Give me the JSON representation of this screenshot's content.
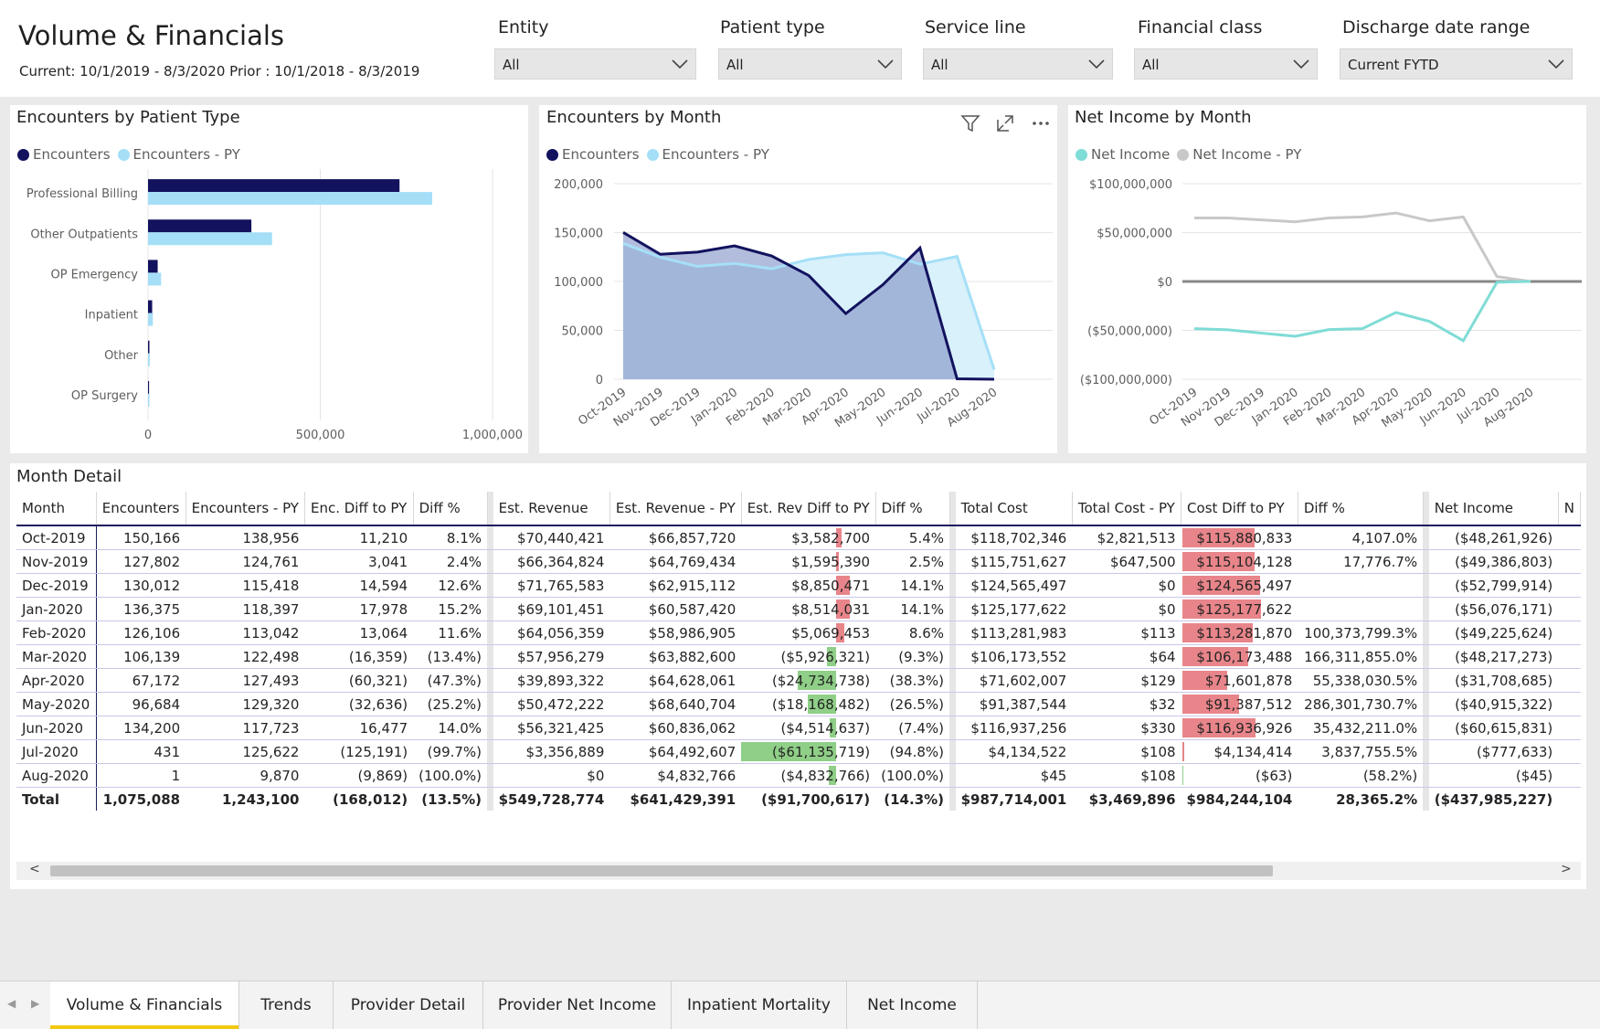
{
  "header": {
    "title": "Volume & Financials",
    "subtitle": "Current: 10/1/2019 - 8/3/2020 Prior : 10/1/2018 - 8/3/2019"
  },
  "slicers": [
    {
      "label": "Entity",
      "value": "All"
    },
    {
      "label": "Patient type",
      "value": "All"
    },
    {
      "label": "Service line",
      "value": "All"
    },
    {
      "label": "Financial class",
      "value": "All"
    },
    {
      "label": "Discharge date range",
      "value": "Current FYTD"
    }
  ],
  "visuals": {
    "patient_type": {
      "title": "Encounters by Patient Type",
      "legend": [
        "Encounters",
        "Encounters - PY"
      ]
    },
    "month": {
      "title": "Encounters by Month",
      "legend": [
        "Encounters",
        "Encounters - PY"
      ]
    },
    "net_income": {
      "title": "Net Income by Month",
      "legend": [
        "Net Income",
        "Net Income - PY"
      ]
    }
  },
  "colors": {
    "current": "#12125e",
    "prior": "#a5dff7",
    "net_income": "#7fdcd6",
    "net_income_py": "#c8c8c8",
    "neg_bar": "#e8858a",
    "pos_bar": "#8fcf87"
  },
  "chart_data": [
    {
      "type": "bar",
      "orientation": "horizontal",
      "title": "Encounters by Patient Type",
      "categories": [
        "Professional Billing",
        "Other Outpatients",
        "OP Emergency",
        "Inpatient",
        "Other",
        "OP Surgery"
      ],
      "series": [
        {
          "name": "Encounters",
          "values": [
            730000,
            300000,
            28000,
            12000,
            4000,
            3000
          ]
        },
        {
          "name": "Encounters - PY",
          "values": [
            825000,
            360000,
            38000,
            14000,
            5000,
            4000
          ]
        }
      ],
      "xlim": [
        0,
        1000000
      ],
      "x_ticks": [
        "0",
        "500,000",
        "1,000,000"
      ],
      "legend": "top-left"
    },
    {
      "type": "area",
      "title": "Encounters by Month",
      "categories": [
        "Oct-2019",
        "Nov-2019",
        "Dec-2019",
        "Jan-2020",
        "Feb-2020",
        "Mar-2020",
        "Apr-2020",
        "May-2020",
        "Jun-2020",
        "Jul-2020",
        "Aug-2020"
      ],
      "series": [
        {
          "name": "Encounters",
          "values": [
            150166,
            127802,
            130012,
            136375,
            126106,
            106139,
            67172,
            96684,
            134200,
            431,
            1
          ]
        },
        {
          "name": "Encounters - PY",
          "values": [
            138956,
            124761,
            115418,
            118397,
            113042,
            122498,
            127493,
            129320,
            117723,
            125622,
            9870
          ]
        }
      ],
      "ylim": [
        0,
        200000
      ],
      "y_ticks": [
        "0",
        "50,000",
        "100,000",
        "150,000",
        "200,000"
      ],
      "legend": "top-left",
      "grid": true
    },
    {
      "type": "line",
      "title": "Net Income by Month",
      "categories": [
        "Oct-2019",
        "Nov-2019",
        "Dec-2019",
        "Jan-2020",
        "Feb-2020",
        "Mar-2020",
        "Apr-2020",
        "May-2020",
        "Jun-2020",
        "Jul-2020",
        "Aug-2020"
      ],
      "series": [
        {
          "name": "Net Income",
          "values": [
            -48261926,
            -49386803,
            -52799914,
            -56076171,
            -49225624,
            -48217273,
            -31708685,
            -40915322,
            -60615831,
            -777633,
            -45
          ]
        },
        {
          "name": "Net Income - PY",
          "values": [
            65000000,
            65000000,
            63000000,
            61000000,
            65000000,
            66000000,
            70000000,
            62000000,
            66000000,
            5000000,
            0
          ]
        }
      ],
      "ylim": [
        -100000000,
        100000000
      ],
      "y_ticks": [
        "($100,000,000)",
        "($50,000,000)",
        "$0",
        "$50,000,000",
        "$100,000,000"
      ],
      "legend": "top-left",
      "grid": true
    }
  ],
  "table": {
    "title": "Month Detail",
    "columns": [
      "Month",
      "Encounters",
      "Encounters - PY",
      "Enc. Diff to PY",
      "Diff %",
      "Est. Revenue",
      "Est. Revenue - PY",
      "Est. Rev Diff to PY",
      "Diff %",
      "Total Cost",
      "Total Cost - PY",
      "Cost Diff to PY",
      "Diff %",
      "Net Income",
      "N"
    ],
    "rows": [
      {
        "month": "Oct-2019",
        "enc": "150,166",
        "enc_py": "138,956",
        "enc_diff": "11,210",
        "enc_pct": "8.1%",
        "rev": "$70,440,421",
        "rev_py": "$66,857,720",
        "rev_diff": "$3,582,700",
        "rev_diff_v": 3582700,
        "rev_pct": "5.4%",
        "cost": "$118,702,346",
        "cost_py": "$2,821,513",
        "cost_diff": "$115,880,833",
        "cost_diff_v": 115880833,
        "cost_pct": "4,107.0%",
        "ni": "($48,261,926)"
      },
      {
        "month": "Nov-2019",
        "enc": "127,802",
        "enc_py": "124,761",
        "enc_diff": "3,041",
        "enc_pct": "2.4%",
        "rev": "$66,364,824",
        "rev_py": "$64,769,434",
        "rev_diff": "$1,595,390",
        "rev_diff_v": 1595390,
        "rev_pct": "2.5%",
        "cost": "$115,751,627",
        "cost_py": "$647,500",
        "cost_diff": "$115,104,128",
        "cost_diff_v": 115104128,
        "cost_pct": "17,776.7%",
        "ni": "($49,386,803)"
      },
      {
        "month": "Dec-2019",
        "enc": "130,012",
        "enc_py": "115,418",
        "enc_diff": "14,594",
        "enc_pct": "12.6%",
        "rev": "$71,765,583",
        "rev_py": "$62,915,112",
        "rev_diff": "$8,850,471",
        "rev_diff_v": 8850471,
        "rev_pct": "14.1%",
        "cost": "$124,565,497",
        "cost_py": "$0",
        "cost_diff": "$124,565,497",
        "cost_diff_v": 124565497,
        "cost_pct": "",
        "ni": "($52,799,914)"
      },
      {
        "month": "Jan-2020",
        "enc": "136,375",
        "enc_py": "118,397",
        "enc_diff": "17,978",
        "enc_pct": "15.2%",
        "rev": "$69,101,451",
        "rev_py": "$60,587,420",
        "rev_diff": "$8,514,031",
        "rev_diff_v": 8514031,
        "rev_pct": "14.1%",
        "cost": "$125,177,622",
        "cost_py": "$0",
        "cost_diff": "$125,177,622",
        "cost_diff_v": 125177622,
        "cost_pct": "",
        "ni": "($56,076,171)"
      },
      {
        "month": "Feb-2020",
        "enc": "126,106",
        "enc_py": "113,042",
        "enc_diff": "13,064",
        "enc_pct": "11.6%",
        "rev": "$64,056,359",
        "rev_py": "$58,986,905",
        "rev_diff": "$5,069,453",
        "rev_diff_v": 5069453,
        "rev_pct": "8.6%",
        "cost": "$113,281,983",
        "cost_py": "$113",
        "cost_diff": "$113,281,870",
        "cost_diff_v": 113281870,
        "cost_pct": "100,373,799.3%",
        "ni": "($49,225,624)"
      },
      {
        "month": "Mar-2020",
        "enc": "106,139",
        "enc_py": "122,498",
        "enc_diff": "(16,359)",
        "enc_pct": "(13.4%)",
        "rev": "$57,956,279",
        "rev_py": "$63,882,600",
        "rev_diff": "($5,926,321)",
        "rev_diff_v": -5926321,
        "rev_pct": "(9.3%)",
        "cost": "$106,173,552",
        "cost_py": "$64",
        "cost_diff": "$106,173,488",
        "cost_diff_v": 106173488,
        "cost_pct": "166,311,855.0%",
        "ni": "($48,217,273)"
      },
      {
        "month": "Apr-2020",
        "enc": "67,172",
        "enc_py": "127,493",
        "enc_diff": "(60,321)",
        "enc_pct": "(47.3%)",
        "rev": "$39,893,322",
        "rev_py": "$64,628,061",
        "rev_diff": "($24,734,738)",
        "rev_diff_v": -24734738,
        "rev_pct": "(38.3%)",
        "cost": "$71,602,007",
        "cost_py": "$129",
        "cost_diff": "$71,601,878",
        "cost_diff_v": 71601878,
        "cost_pct": "55,338,030.5%",
        "ni": "($31,708,685)"
      },
      {
        "month": "May-2020",
        "enc": "96,684",
        "enc_py": "129,320",
        "enc_diff": "(32,636)",
        "enc_pct": "(25.2%)",
        "rev": "$50,472,222",
        "rev_py": "$68,640,704",
        "rev_diff": "($18,168,482)",
        "rev_diff_v": -18168482,
        "rev_pct": "(26.5%)",
        "cost": "$91,387,544",
        "cost_py": "$32",
        "cost_diff": "$91,387,512",
        "cost_diff_v": 91387512,
        "cost_pct": "286,301,730.7%",
        "ni": "($40,915,322)"
      },
      {
        "month": "Jun-2020",
        "enc": "134,200",
        "enc_py": "117,723",
        "enc_diff": "16,477",
        "enc_pct": "14.0%",
        "rev": "$56,321,425",
        "rev_py": "$60,836,062",
        "rev_diff": "($4,514,637)",
        "rev_diff_v": -4514637,
        "rev_pct": "(7.4%)",
        "cost": "$116,937,256",
        "cost_py": "$330",
        "cost_diff": "$116,936,926",
        "cost_diff_v": 116936926,
        "cost_pct": "35,432,211.0%",
        "ni": "($60,615,831)"
      },
      {
        "month": "Jul-2020",
        "enc": "431",
        "enc_py": "125,622",
        "enc_diff": "(125,191)",
        "enc_pct": "(99.7%)",
        "rev": "$3,356,889",
        "rev_py": "$64,492,607",
        "rev_diff": "($61,135,719)",
        "rev_diff_v": -61135719,
        "rev_pct": "(94.8%)",
        "cost": "$4,134,522",
        "cost_py": "$108",
        "cost_diff": "$4,134,414",
        "cost_diff_v": 4134414,
        "cost_pct": "3,837,755.5%",
        "ni": "($777,633)"
      },
      {
        "month": "Aug-2020",
        "enc": "1",
        "enc_py": "9,870",
        "enc_diff": "(9,869)",
        "enc_pct": "(100.0%)",
        "rev": "$0",
        "rev_py": "$4,832,766",
        "rev_diff": "($4,832,766)",
        "rev_diff_v": -4832766,
        "rev_pct": "(100.0%)",
        "cost": "$45",
        "cost_py": "$108",
        "cost_diff": "($63)",
        "cost_diff_v": -63,
        "cost_pct": "(58.2%)",
        "ni": "($45)"
      }
    ],
    "total": {
      "month": "Total",
      "enc": "1,075,088",
      "enc_py": "1,243,100",
      "enc_diff": "(168,012)",
      "enc_pct": "(13.5%)",
      "rev": "$549,728,774",
      "rev_py": "$641,429,391",
      "rev_diff": "($91,700,617)",
      "rev_pct": "(14.3%)",
      "cost": "$987,714,001",
      "cost_py": "$3,469,896",
      "cost_diff": "$984,244,104",
      "cost_pct": "28,365.2%",
      "ni": "($437,985,227)"
    },
    "scroll_left": "<",
    "scroll_right": ">"
  },
  "tabs": [
    "Volume & Financials",
    "Trends",
    "Provider Detail",
    "Provider Net Income",
    "Inpatient Mortality",
    "Net Income"
  ],
  "active_tab": 0
}
